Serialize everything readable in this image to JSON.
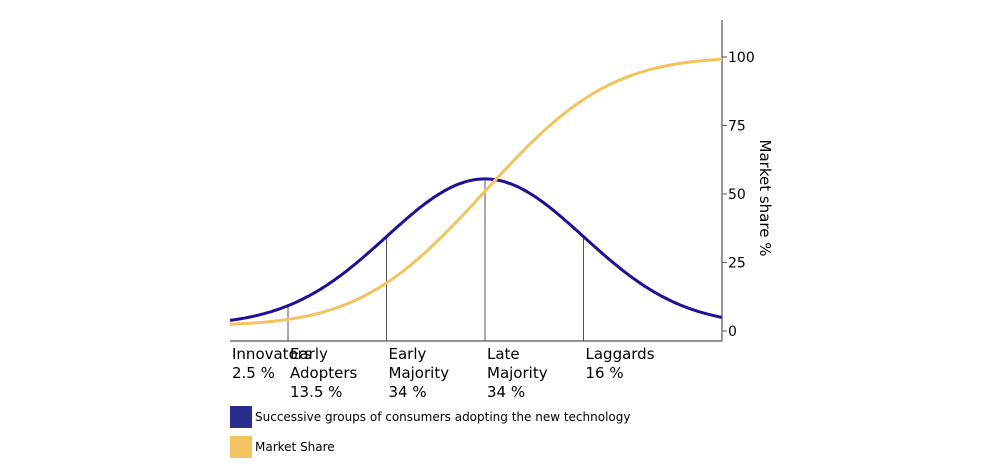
{
  "chart_data": {
    "type": "line",
    "right_axis": {
      "label": "Market share %",
      "ticks": [
        0,
        25,
        50,
        75,
        100
      ],
      "ylim": [
        0,
        100
      ]
    },
    "segments": [
      {
        "name_lines": [
          "Innovators"
        ],
        "percent": "2.5 %",
        "share": 2.5
      },
      {
        "name_lines": [
          "Early",
          "Adopters"
        ],
        "percent": "13.5 %",
        "share": 13.5
      },
      {
        "name_lines": [
          "Early",
          "Majority"
        ],
        "percent": "34 %",
        "share": 34
      },
      {
        "name_lines": [
          "Late",
          "Majority"
        ],
        "percent": "34 %",
        "share": 34
      },
      {
        "name_lines": [
          "Laggards"
        ],
        "percent": "16 %",
        "share": 16
      }
    ],
    "series": [
      {
        "name": "Successive groups of consumers adopting the new technology",
        "kind": "bell",
        "color": "#1f1196"
      },
      {
        "name": "Market Share",
        "kind": "cumulative",
        "color": "#f2c35e"
      }
    ],
    "grid": false,
    "legend_position": "bottom-left"
  },
  "legend": {
    "items": [
      {
        "label": "Successive groups of consumers adopting the new technology",
        "color": "#2b2d8e"
      },
      {
        "label": "Market Share",
        "color": "#f2c35e"
      }
    ]
  }
}
